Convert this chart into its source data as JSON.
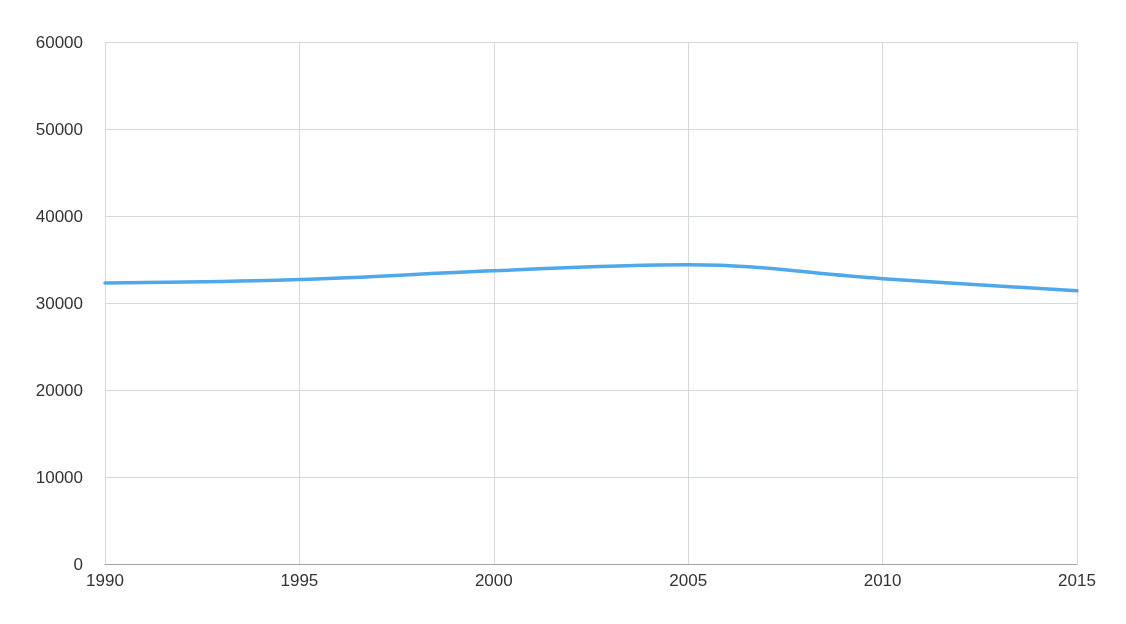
{
  "chart_data": {
    "type": "line",
    "x": [
      1990,
      1995,
      2000,
      2005,
      2010,
      2015
    ],
    "series": [
      {
        "color": "#4ea8ea",
        "values": [
          32300,
          32700,
          33700,
          34400,
          32800,
          31400
        ]
      }
    ],
    "xlim": [
      1990,
      2015
    ],
    "xticks": [
      1990,
      1995,
      2000,
      2005,
      2010,
      2015
    ],
    "ylim": [
      0,
      60000
    ],
    "yticks": [
      0,
      10000,
      20000,
      30000,
      40000,
      50000,
      60000
    ],
    "grid": true,
    "marker": "none",
    "line_style": "solid"
  }
}
